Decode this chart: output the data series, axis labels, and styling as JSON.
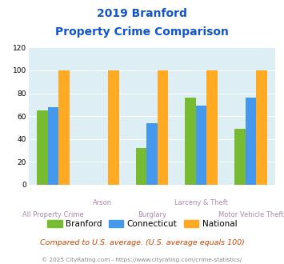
{
  "title_line1": "2019 Branford",
  "title_line2": "Property Crime Comparison",
  "categories": [
    "All Property Crime",
    "Arson",
    "Burglary",
    "Larceny & Theft",
    "Motor Vehicle Theft"
  ],
  "cat_labels": [
    "All Property Crime",
    "Arson",
    "Burglary",
    "Larceny & Theft",
    "Motor Vehicle Theft"
  ],
  "branford": [
    65,
    0,
    32,
    76,
    49
  ],
  "connecticut": [
    68,
    0,
    54,
    69,
    76
  ],
  "national": [
    100,
    100,
    100,
    100,
    100
  ],
  "color_branford": "#77bb33",
  "color_connecticut": "#4499ee",
  "color_national": "#ffaa22",
  "ylim": [
    0,
    120
  ],
  "yticks": [
    0,
    20,
    40,
    60,
    80,
    100,
    120
  ],
  "xlabel_color": "#aa88aa",
  "title_color": "#1155cc",
  "legend_labels": [
    "Branford",
    "Connecticut",
    "National"
  ],
  "footer_text": "Compared to U.S. average. (U.S. average equals 100)",
  "footer_color": "#cc4400",
  "copyright_text": "© 2025 CityRating.com - https://www.cityrating.com/crime-statistics/",
  "copyright_color": "#888888",
  "bg_color": "#ddeef5",
  "bar_width": 0.22
}
